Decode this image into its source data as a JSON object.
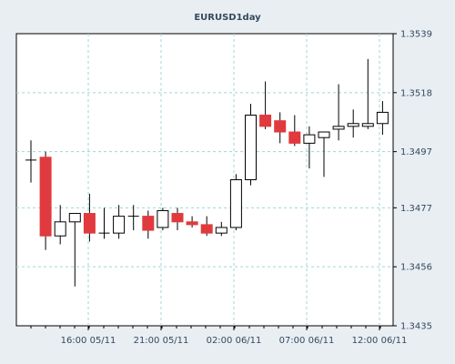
{
  "chart_data": {
    "type": "candlestick",
    "title": "EURUSD1day",
    "xlabel": "",
    "ylabel": "",
    "ylim": [
      1.3435,
      1.3539
    ],
    "y_ticks": [
      "1.3539",
      "1.3518",
      "1.3497",
      "1.3477",
      "1.3456",
      "1.3435"
    ],
    "x_ticks": [
      "16:00 05/11",
      "21:00 05/11",
      "02:00 06/11",
      "07:00 06/11",
      "12:00 06/11"
    ],
    "grid": true,
    "colors": {
      "up": "#ffffff",
      "down": "#e03a3e",
      "wick": "#000000",
      "grid": "#9fd6d8",
      "frame": "#000000"
    },
    "candles": [
      {
        "o": 1.3494,
        "h": 1.3501,
        "l": 1.3486,
        "c": 1.3494
      },
      {
        "o": 1.3495,
        "h": 1.3497,
        "l": 1.3462,
        "c": 1.3467
      },
      {
        "o": 1.3467,
        "h": 1.3478,
        "l": 1.3464,
        "c": 1.3472
      },
      {
        "o": 1.3472,
        "h": 1.3475,
        "l": 1.3449,
        "c": 1.3475
      },
      {
        "o": 1.3475,
        "h": 1.3482,
        "l": 1.3465,
        "c": 1.3468
      },
      {
        "o": 1.3468,
        "h": 1.3477,
        "l": 1.3466,
        "c": 1.3468
      },
      {
        "o": 1.3468,
        "h": 1.3478,
        "l": 1.3466,
        "c": 1.3474
      },
      {
        "o": 1.3474,
        "h": 1.3478,
        "l": 1.3469,
        "c": 1.3474
      },
      {
        "o": 1.3474,
        "h": 1.3476,
        "l": 1.3466,
        "c": 1.3469
      },
      {
        "o": 1.347,
        "h": 1.3477,
        "l": 1.3469,
        "c": 1.3476
      },
      {
        "o": 1.3475,
        "h": 1.3477,
        "l": 1.3469,
        "c": 1.3472
      },
      {
        "o": 1.3472,
        "h": 1.3474,
        "l": 1.347,
        "c": 1.3471
      },
      {
        "o": 1.3471,
        "h": 1.3474,
        "l": 1.3467,
        "c": 1.3468
      },
      {
        "o": 1.3468,
        "h": 1.3472,
        "l": 1.3467,
        "c": 1.347
      },
      {
        "o": 1.347,
        "h": 1.3489,
        "l": 1.3469,
        "c": 1.3487
      },
      {
        "o": 1.3487,
        "h": 1.3514,
        "l": 1.3485,
        "c": 1.351
      },
      {
        "o": 1.351,
        "h": 1.3522,
        "l": 1.3505,
        "c": 1.3506
      },
      {
        "o": 1.3508,
        "h": 1.3511,
        "l": 1.35,
        "c": 1.3504
      },
      {
        "o": 1.3504,
        "h": 1.351,
        "l": 1.3499,
        "c": 1.35
      },
      {
        "o": 1.35,
        "h": 1.3506,
        "l": 1.3491,
        "c": 1.3503
      },
      {
        "o": 1.3502,
        "h": 1.3504,
        "l": 1.3488,
        "c": 1.3504
      },
      {
        "o": 1.3505,
        "h": 1.3521,
        "l": 1.3501,
        "c": 1.3506
      },
      {
        "o": 1.3506,
        "h": 1.3512,
        "l": 1.3502,
        "c": 1.3507
      },
      {
        "o": 1.3506,
        "h": 1.353,
        "l": 1.3505,
        "c": 1.3507
      },
      {
        "o": 1.3507,
        "h": 1.3515,
        "l": 1.3503,
        "c": 1.3511
      }
    ]
  }
}
